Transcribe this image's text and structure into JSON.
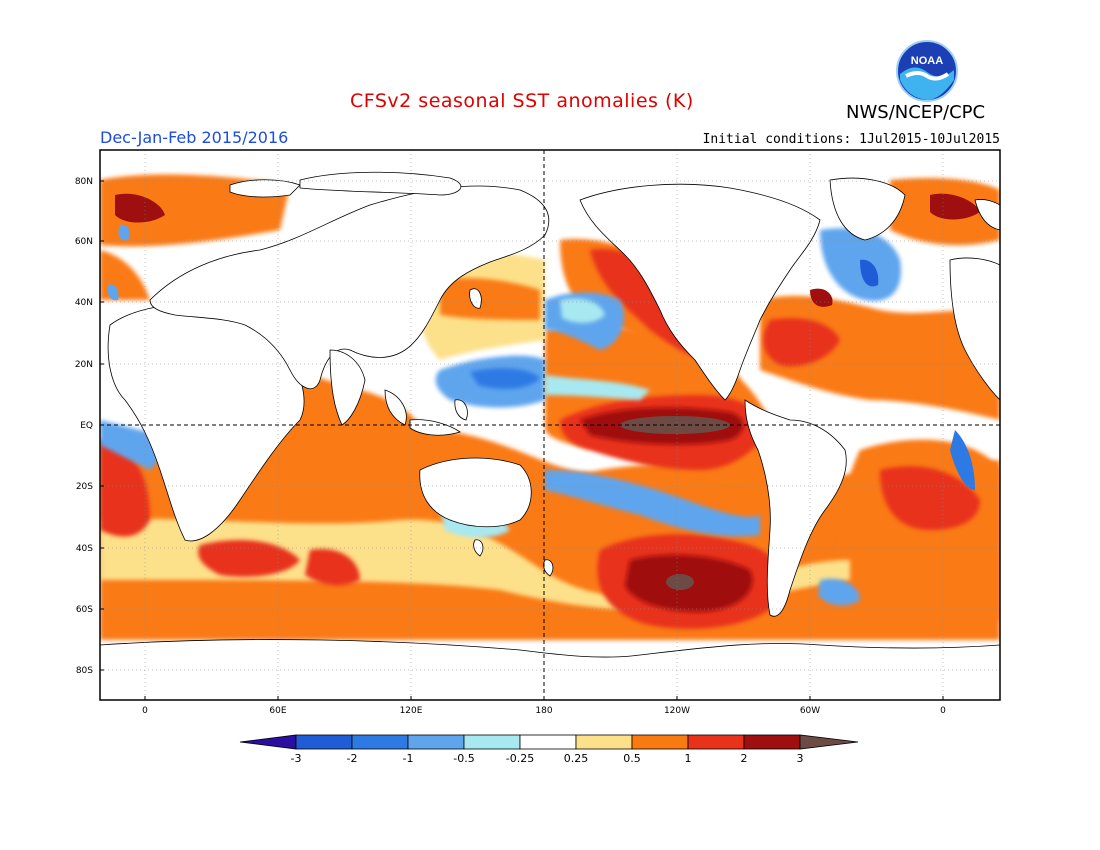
{
  "header": {
    "title": "CFSv2 seasonal SST anomalies (K)",
    "agency": "NWS/NCEP/CPC",
    "period": "Dec-Jan-Feb 2015/2016",
    "initial_conditions": "Initial conditions: 1Jul2015-10Jul2015",
    "logo_text": "NOAA"
  },
  "map": {
    "lat_labels": [
      "80N",
      "60N",
      "40N",
      "20N",
      "EQ",
      "20S",
      "40S",
      "60S",
      "80S"
    ],
    "lon_labels": [
      "0",
      "60E",
      "120E",
      "180",
      "120W",
      "60W",
      "0"
    ]
  },
  "colorbar": {
    "labels": [
      "-3",
      "-2",
      "-1",
      "-0.5",
      "-0.25",
      "0.25",
      "0.5",
      "1",
      "2",
      "3"
    ],
    "colors": {
      "below": "#2a0fa0",
      "c1": "#1f5cd6",
      "c2": "#2d7ae4",
      "c3": "#5ea5ee",
      "c4": "#a8e8f0",
      "c5": "#ffffff",
      "c6": "#fde08a",
      "c7": "#fa7a12",
      "c8": "#e8331a",
      "c9": "#a00f0f",
      "above": "#6e4a44"
    }
  },
  "colors": {
    "land_outline": "#000000",
    "title": "#e00000",
    "period": "#1a4de0"
  }
}
